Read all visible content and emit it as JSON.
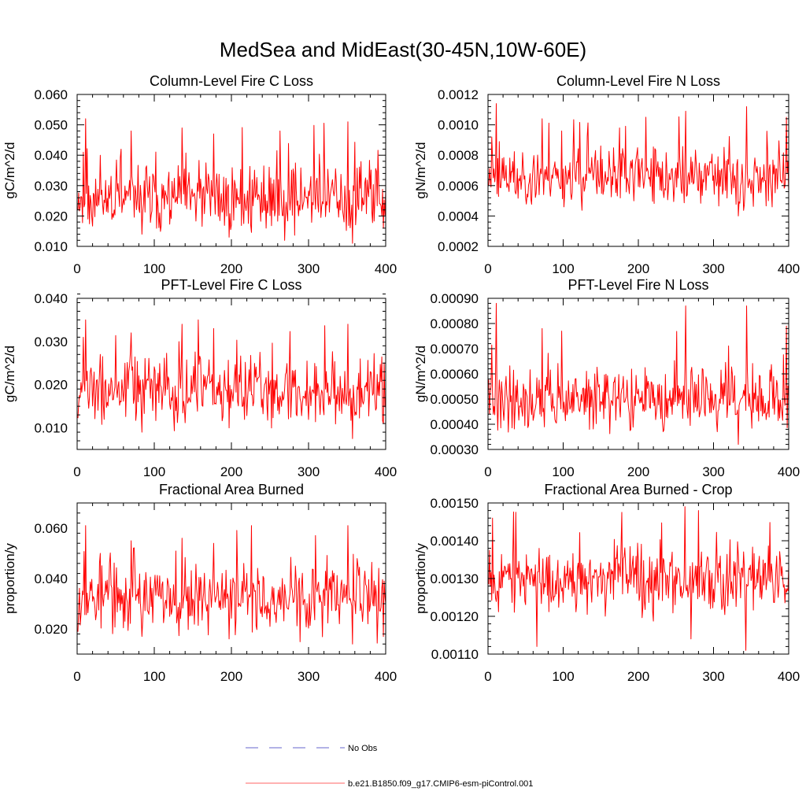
{
  "page_title": "MedSea and MidEast(30-45N,10W-60E)",
  "legend": [
    {
      "label": "No Obs",
      "color": "#6666cc",
      "style": "dashed"
    },
    {
      "label": "b.e21.B1850.f09_g17.CMIP6-esm-piControl.001",
      "color": "#ff6666",
      "style": "solid"
    }
  ],
  "series_color": "#ff0000",
  "chart_data": [
    {
      "type": "line",
      "title": "Column-Level Fire C Loss",
      "xlabel": "",
      "ylabel": "gC/m^2/d",
      "xlim": [
        0,
        400
      ],
      "ylim": [
        0.01,
        0.06
      ],
      "xticks": [
        0,
        100,
        200,
        300,
        400
      ],
      "xtick_labels": [
        "0",
        "100",
        "200",
        "300",
        "400"
      ],
      "yticks": [
        0.01,
        0.02,
        0.03,
        0.04,
        0.05,
        0.06
      ],
      "ytick_labels": [
        "0.010",
        "0.020",
        "0.030",
        "0.040",
        "0.050",
        "0.060"
      ],
      "x_start": 1,
      "x_end": 400,
      "series": [
        {
          "name": "b.e21.B1850.f09_g17.CMIP6-esm-piControl.001",
          "mean": 0.026,
          "spread": 0.0055,
          "min": 0.011,
          "max": 0.052,
          "seed": 11,
          "peaks": [
            [
              1,
              0.022
            ],
            [
              8,
              0.041
            ],
            [
              11,
              0.052
            ],
            [
              30,
              0.04
            ],
            [
              57,
              0.042
            ],
            [
              70,
              0.048
            ],
            [
              84,
              0.014
            ],
            [
              136,
              0.049
            ],
            [
              177,
              0.047
            ],
            [
              197,
              0.013
            ],
            [
              263,
              0.048
            ],
            [
              351,
              0.051
            ],
            [
              357,
              0.011
            ],
            [
              397,
              0.016
            ]
          ]
        }
      ]
    },
    {
      "type": "line",
      "title": "Column-Level Fire N Loss",
      "xlabel": "",
      "ylabel": "gN/m^2/d",
      "xlim": [
        0,
        400
      ],
      "ylim": [
        0.0002,
        0.0012
      ],
      "xticks": [
        0,
        100,
        200,
        300,
        400
      ],
      "xtick_labels": [
        "0",
        "100",
        "200",
        "300",
        "400"
      ],
      "yticks": [
        0.0002,
        0.0004,
        0.0006,
        0.0008,
        0.001,
        0.0012
      ],
      "ytick_labels": [
        "0.0002",
        "0.0004",
        "0.0006",
        "0.0008",
        "0.0010",
        "0.0012"
      ],
      "x_start": 1,
      "x_end": 400,
      "series": [
        {
          "name": "b.e21.B1850.f09_g17.CMIP6-esm-piControl.001",
          "mean": 0.00066,
          "spread": 9e-05,
          "min": 0.0004,
          "max": 0.00114,
          "seed": 23,
          "peaks": [
            [
              5,
              0.00092
            ],
            [
              11,
              0.00114
            ],
            [
              72,
              0.00104
            ],
            [
              98,
              0.00096
            ],
            [
              175,
              0.00098
            ],
            [
              263,
              0.00109
            ],
            [
              333,
              0.0004
            ],
            [
              344,
              0.00112
            ],
            [
              397,
              0.00105
            ]
          ]
        }
      ]
    },
    {
      "type": "line",
      "title": "PFT-Level Fire C Loss",
      "xlabel": "",
      "ylabel": "gC/m^2/d",
      "xlim": [
        0,
        400
      ],
      "ylim": [
        0.005,
        0.04
      ],
      "xticks": [
        0,
        100,
        200,
        300,
        400
      ],
      "xtick_labels": [
        "0",
        "100",
        "200",
        "300",
        "400"
      ],
      "yticks": [
        0.01,
        0.02,
        0.03,
        0.04
      ],
      "ytick_labels": [
        "0.010",
        "0.020",
        "0.030",
        "0.040"
      ],
      "x_start": 1,
      "x_end": 400,
      "series": [
        {
          "name": "b.e21.B1850.f09_g17.CMIP6-esm-piControl.001",
          "mean": 0.0185,
          "spread": 0.0038,
          "min": 0.0075,
          "max": 0.035,
          "seed": 37,
          "peaks": [
            [
              11,
              0.035
            ],
            [
              30,
              0.027
            ],
            [
              70,
              0.032
            ],
            [
              84,
              0.009
            ],
            [
              136,
              0.034
            ],
            [
              177,
              0.033
            ],
            [
              197,
              0.01
            ],
            [
              351,
              0.034
            ],
            [
              357,
              0.0075
            ],
            [
              397,
              0.011
            ]
          ]
        }
      ]
    },
    {
      "type": "line",
      "title": "PFT-Level Fire N Loss",
      "xlabel": "",
      "ylabel": "gN/m^2/d",
      "xlim": [
        0,
        400
      ],
      "ylim": [
        0.0003,
        0.0009
      ],
      "xticks": [
        0,
        100,
        200,
        300,
        400
      ],
      "xtick_labels": [
        "0",
        "100",
        "200",
        "300",
        "400"
      ],
      "yticks": [
        0.0003,
        0.0004,
        0.0005,
        0.0006,
        0.0007,
        0.0008,
        0.0009
      ],
      "ytick_labels": [
        "0.00030",
        "0.00040",
        "0.00050",
        "0.00060",
        "0.00070",
        "0.00080",
        "0.00090"
      ],
      "x_start": 1,
      "x_end": 400,
      "series": [
        {
          "name": "b.e21.B1850.f09_g17.CMIP6-esm-piControl.001",
          "mean": 0.0005,
          "spread": 6e-05,
          "min": 0.00032,
          "max": 0.00088,
          "seed": 41,
          "peaks": [
            [
              11,
              0.00088
            ],
            [
              72,
              0.00078
            ],
            [
              98,
              0.00077
            ],
            [
              263,
              0.00087
            ],
            [
              333,
              0.00032
            ],
            [
              344,
              0.00087
            ],
            [
              397,
              0.00079
            ]
          ]
        }
      ]
    },
    {
      "type": "line",
      "title": "Fractional Area Burned",
      "xlabel": "",
      "ylabel": "proportion/y",
      "xlim": [
        0,
        400
      ],
      "ylim": [
        0.01,
        0.07
      ],
      "xticks": [
        0,
        100,
        200,
        300,
        400
      ],
      "xtick_labels": [
        "0",
        "100",
        "200",
        "300",
        "400"
      ],
      "yticks": [
        0.02,
        0.04,
        0.06
      ],
      "ytick_labels": [
        "0.020",
        "0.040",
        "0.060"
      ],
      "x_start": 1,
      "x_end": 400,
      "series": [
        {
          "name": "b.e21.B1850.f09_g17.CMIP6-esm-piControl.001",
          "mean": 0.0325,
          "spread": 0.0065,
          "min": 0.014,
          "max": 0.061,
          "seed": 53,
          "peaks": [
            [
              11,
              0.061
            ],
            [
              30,
              0.05
            ],
            [
              70,
              0.055
            ],
            [
              84,
              0.017
            ],
            [
              136,
              0.056
            ],
            [
              177,
              0.054
            ],
            [
              197,
              0.016
            ],
            [
              351,
              0.061
            ],
            [
              357,
              0.014
            ],
            [
              397,
              0.017
            ]
          ]
        }
      ]
    },
    {
      "type": "line",
      "title": "Fractional Area Burned - Crop",
      "xlabel": "",
      "ylabel": "proportion/y",
      "xlim": [
        0,
        400
      ],
      "ylim": [
        0.0011,
        0.0015
      ],
      "xticks": [
        0,
        100,
        200,
        300,
        400
      ],
      "xtick_labels": [
        "0",
        "100",
        "200",
        "300",
        "400"
      ],
      "yticks": [
        0.0011,
        0.0012,
        0.0013,
        0.0014,
        0.0015
      ],
      "ytick_labels": [
        "0.00110",
        "0.00120",
        "0.00130",
        "0.00140",
        "0.00150"
      ],
      "x_start": 1,
      "x_end": 400,
      "series": [
        {
          "name": "b.e21.B1850.f09_g17.CMIP6-esm-piControl.001",
          "mean": 0.0013,
          "spread": 4e-05,
          "min": 0.00111,
          "max": 0.00149,
          "seed": 67,
          "peaks": [
            [
              6,
              0.00146
            ],
            [
              65,
              0.00112
            ],
            [
              262,
              0.00149
            ],
            [
              270,
              0.00114
            ],
            [
              280,
              0.00148
            ],
            [
              343,
              0.00111
            ]
          ]
        }
      ]
    }
  ]
}
